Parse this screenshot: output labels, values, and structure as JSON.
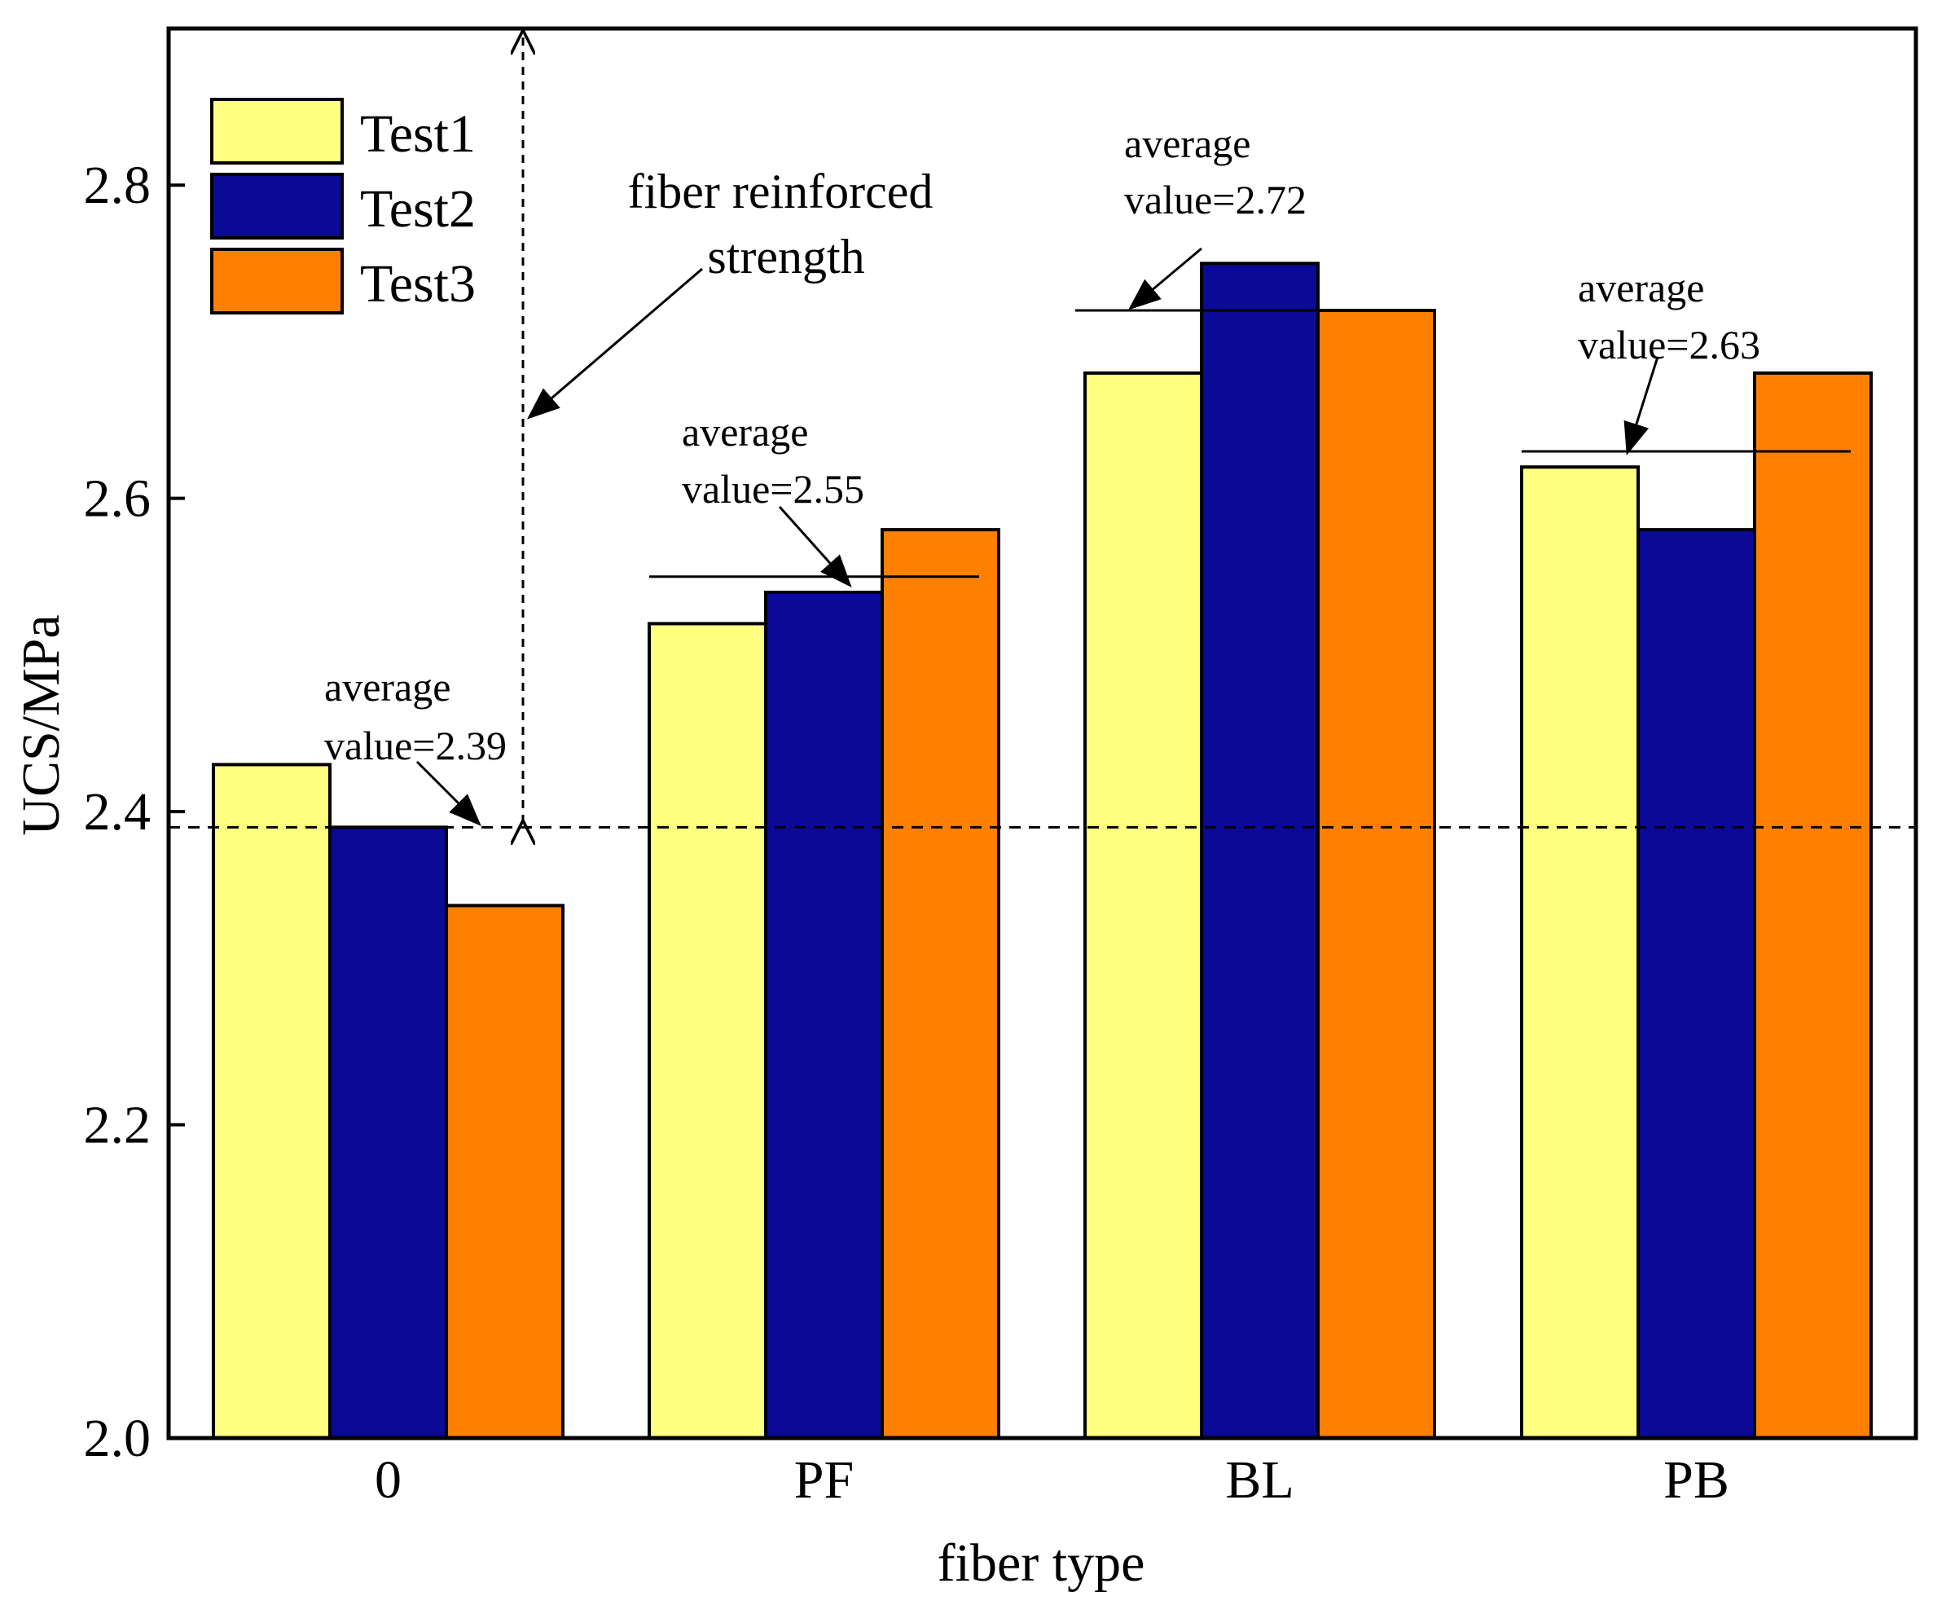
{
  "chart_data": {
    "type": "bar",
    "xlabel": "fiber type",
    "ylabel": "UCS/MPa",
    "ylim": [
      2.0,
      2.9
    ],
    "yticks": [
      2.0,
      2.2,
      2.4,
      2.6,
      2.8
    ],
    "ytick_labels": [
      "2.0",
      "2.2",
      "2.4",
      "2.6",
      "2.8"
    ],
    "categories": [
      "0",
      "PF",
      "BL",
      "PB"
    ],
    "series": [
      {
        "name": "Test1",
        "color": "#FFFF80",
        "values": [
          2.43,
          2.52,
          2.68,
          2.62
        ]
      },
      {
        "name": "Test2",
        "color": "#0A0A96",
        "values": [
          2.39,
          2.54,
          2.75,
          2.58
        ]
      },
      {
        "name": "Test3",
        "color": "#FF8000",
        "values": [
          2.34,
          2.58,
          2.72,
          2.68
        ]
      }
    ],
    "legend_position": "top-left",
    "baseline_dashed_value": 2.39,
    "averages": [
      {
        "category": "0",
        "value": 2.39,
        "label_line1": "average",
        "label_line2": "value=2.39"
      },
      {
        "category": "PF",
        "value": 2.55,
        "label_line1": "average",
        "label_line2": "value=2.55"
      },
      {
        "category": "BL",
        "value": 2.72,
        "label_line1": "average",
        "label_line2": "value=2.72"
      },
      {
        "category": "PB",
        "value": 2.63,
        "label_line1": "average",
        "label_line2": "value=2.63"
      }
    ],
    "reinforced_annotation": {
      "line1": "fiber reinforced",
      "line2": "strength"
    }
  }
}
